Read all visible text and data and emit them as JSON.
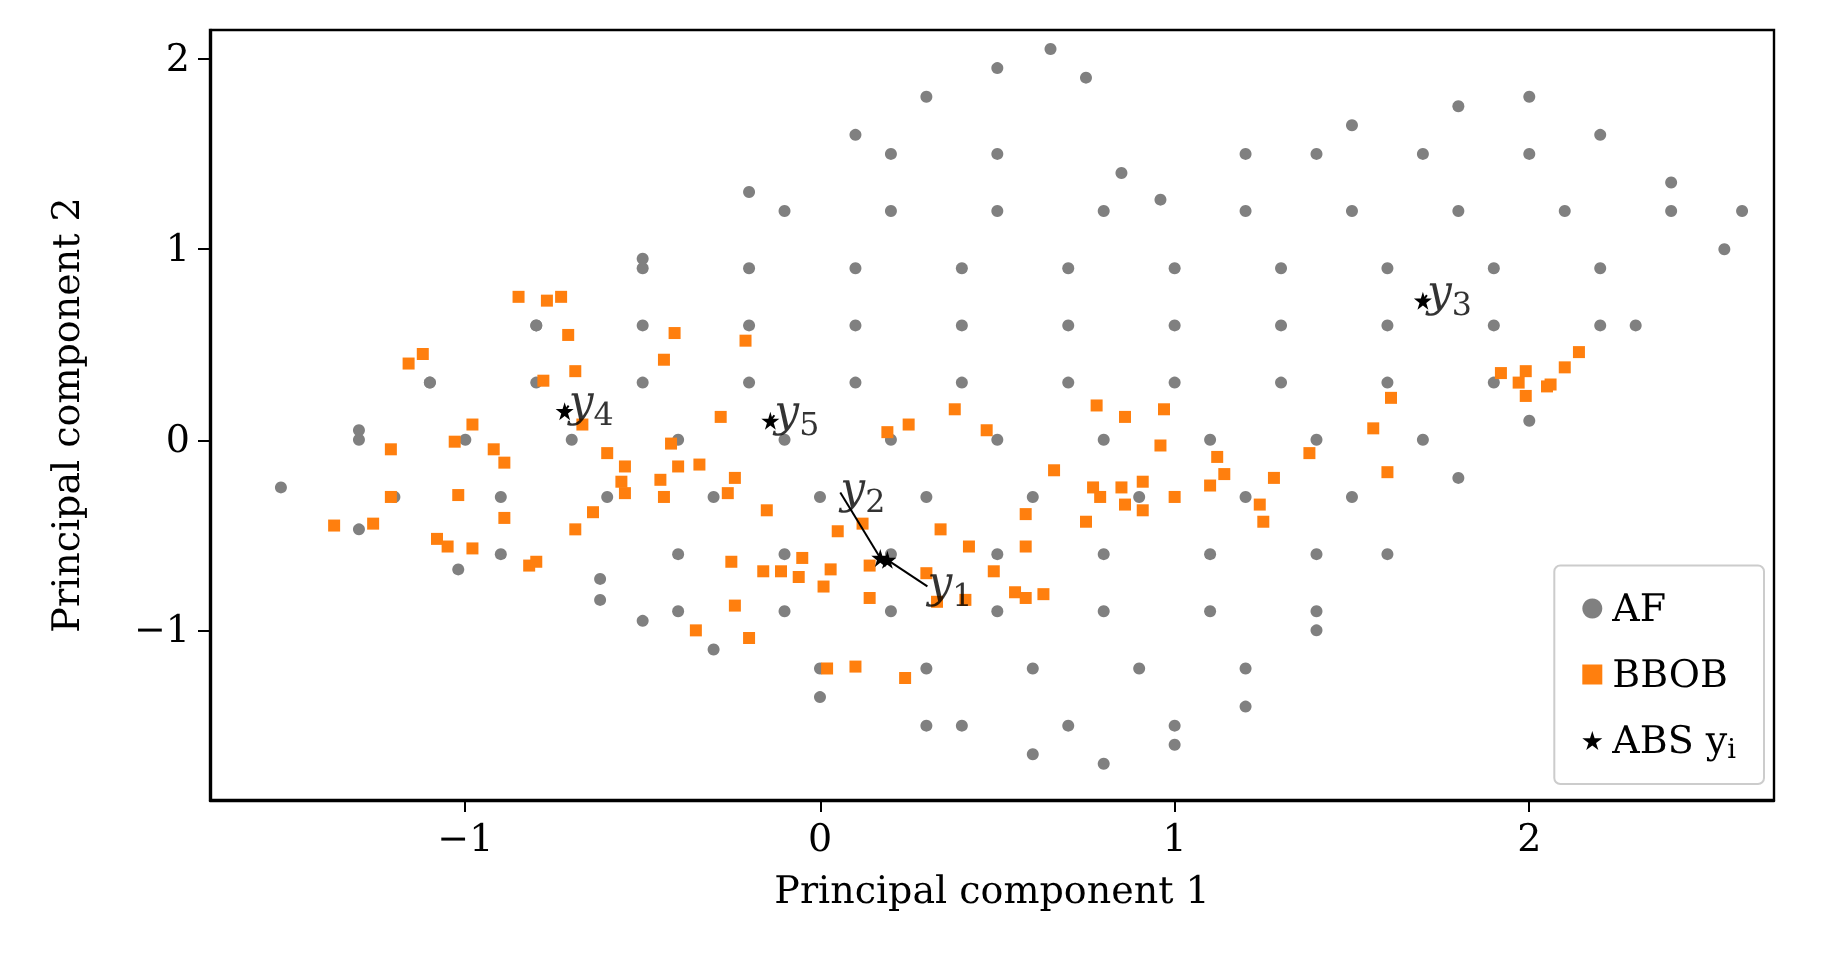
{
  "chart_data": {
    "type": "scatter",
    "xlabel": "Principal component 1",
    "ylabel": "Principal component 2",
    "xlim": [
      -1.72,
      2.69
    ],
    "ylim": [
      -1.89,
      2.15
    ],
    "xticks": [
      -1,
      0,
      1,
      2
    ],
    "yticks": [
      -1,
      0,
      1,
      2
    ],
    "grid": false,
    "legend": "bottom right",
    "series": [
      {
        "name": "AF",
        "color": "#808080",
        "marker": "circle",
        "x": [
          -1.52,
          -1.3,
          -1.1,
          -0.8,
          -0.5,
          -0.2,
          0.1,
          0.3,
          0.5,
          0.65,
          0.75,
          0.85,
          0.96,
          1.2,
          1.5,
          1.8,
          2.0,
          2.2,
          2.4,
          2.6,
          2.55,
          2.3,
          2.0,
          1.8,
          1.6,
          1.4,
          1.2,
          1.0,
          0.8,
          0.6,
          0.3,
          0.0,
          -0.3,
          -0.5,
          -0.62,
          -0.62,
          -1.02,
          -1.3,
          0.2,
          0.5,
          1.4,
          1.7,
          2.0,
          -0.1,
          0.2,
          0.5,
          0.8,
          1.2,
          1.5,
          1.8,
          2.1,
          2.4,
          -0.5,
          -0.2,
          0.1,
          0.4,
          0.7,
          1.0,
          1.3,
          1.6,
          1.9,
          2.2,
          -0.8,
          -0.5,
          -0.2,
          0.1,
          0.4,
          0.7,
          1.0,
          1.3,
          1.6,
          1.9,
          2.2,
          -1.1,
          -0.8,
          -0.5,
          -0.2,
          0.1,
          0.4,
          0.7,
          1.0,
          1.3,
          1.6,
          1.9,
          -1.3,
          -1.0,
          -0.7,
          -0.4,
          -0.1,
          0.2,
          0.5,
          0.8,
          1.1,
          1.4,
          1.7,
          -1.2,
          -0.9,
          -0.6,
          -0.3,
          0.0,
          0.3,
          0.6,
          0.9,
          1.2,
          1.5,
          -0.9,
          -0.4,
          -0.1,
          0.2,
          0.5,
          0.8,
          1.1,
          1.4,
          -0.4,
          -0.1,
          0.2,
          0.5,
          0.8,
          1.1,
          1.4,
          0.0,
          0.3,
          0.6,
          0.9,
          1.2,
          0.4,
          0.7,
          1.0
        ],
        "values": [
          -0.25,
          0.05,
          0.3,
          0.6,
          0.95,
          1.3,
          1.6,
          1.8,
          1.95,
          2.05,
          1.9,
          1.4,
          1.26,
          1.5,
          1.65,
          1.75,
          1.8,
          1.6,
          1.35,
          1.2,
          1.0,
          0.6,
          0.1,
          -0.2,
          -0.6,
          -1.0,
          -1.4,
          -1.6,
          -1.7,
          -1.65,
          -1.5,
          -1.35,
          -1.1,
          -0.95,
          -0.84,
          -0.73,
          -0.68,
          -0.47,
          1.5,
          1.5,
          1.5,
          1.5,
          1.5,
          1.2,
          1.2,
          1.2,
          1.2,
          1.2,
          1.2,
          1.2,
          1.2,
          1.2,
          0.9,
          0.9,
          0.9,
          0.9,
          0.9,
          0.9,
          0.9,
          0.9,
          0.9,
          0.9,
          0.6,
          0.6,
          0.6,
          0.6,
          0.6,
          0.6,
          0.6,
          0.6,
          0.6,
          0.6,
          0.6,
          0.3,
          0.3,
          0.3,
          0.3,
          0.3,
          0.3,
          0.3,
          0.3,
          0.3,
          0.3,
          0.3,
          0,
          0,
          0,
          0,
          0,
          0,
          0,
          0,
          0,
          0,
          0,
          -0.3,
          -0.3,
          -0.3,
          -0.3,
          -0.3,
          -0.3,
          -0.3,
          -0.3,
          -0.3,
          -0.3,
          -0.6,
          -0.6,
          -0.6,
          -0.6,
          -0.6,
          -0.6,
          -0.6,
          -0.6,
          -0.9,
          -0.9,
          -0.9,
          -0.9,
          -0.9,
          -0.9,
          -0.9,
          -1.2,
          -1.2,
          -1.2,
          -1.2,
          -1.2,
          -1.5,
          -1.5,
          -1.5
        ]
      },
      {
        "name": "BBOB",
        "color": "#ff7f0e",
        "marker": "square",
        "x": [
          -0.85,
          -0.77,
          -0.73,
          -0.71,
          -0.41,
          -0.21,
          -0.44,
          -0.69,
          -0.78,
          -1.12,
          -1.16,
          -0.67,
          -0.98,
          -1.03,
          -1.21,
          -0.92,
          -0.89,
          -0.6,
          -0.55,
          -0.28,
          -0.42,
          -0.4,
          -0.34,
          -0.24,
          -0.26,
          -0.45,
          -0.44,
          -0.56,
          -0.55,
          -1.21,
          -1.02,
          -0.89,
          -0.64,
          -0.69,
          -0.15,
          -1.37,
          -1.26,
          -1.08,
          -1.05,
          -0.98,
          -0.82,
          -0.8,
          -0.25,
          -0.16,
          -0.11,
          -0.06,
          -0.05,
          -0.24,
          -0.35,
          -0.2,
          0.38,
          0.19,
          0.25,
          0.47,
          0.78,
          0.86,
          0.97,
          0.96,
          0.66,
          1.12,
          1.14,
          1.1,
          1.28,
          1.38,
          1.24,
          1.25,
          0.77,
          0.79,
          0.85,
          0.91,
          0.86,
          0.91,
          1.0,
          0.75,
          0.58,
          0.05,
          0.12,
          0.34,
          0.42,
          0.58,
          0.03,
          0.01,
          0.14,
          0.14,
          0.3,
          0.33,
          0.41,
          0.49,
          0.55,
          0.58,
          0.63,
          0.02,
          0.1,
          0.24,
          1.92,
          1.99,
          1.97,
          1.99,
          2.05,
          2.06,
          2.1,
          2.14,
          1.61,
          1.56,
          1.6
        ],
        "values": [
          0.75,
          0.73,
          0.75,
          0.55,
          0.56,
          0.52,
          0.42,
          0.36,
          0.31,
          0.45,
          0.4,
          0.08,
          0.08,
          -0.01,
          -0.05,
          -0.05,
          -0.12,
          -0.07,
          -0.14,
          0.12,
          -0.02,
          -0.14,
          -0.13,
          -0.2,
          -0.28,
          -0.21,
          -0.3,
          -0.22,
          -0.28,
          -0.3,
          -0.29,
          -0.41,
          -0.38,
          -0.47,
          -0.37,
          -0.45,
          -0.44,
          -0.52,
          -0.56,
          -0.57,
          -0.66,
          -0.64,
          -0.64,
          -0.69,
          -0.69,
          -0.72,
          -0.62,
          -0.87,
          -1.0,
          -1.04,
          0.16,
          0.04,
          0.08,
          0.05,
          0.18,
          0.12,
          0.16,
          -0.03,
          -0.16,
          -0.09,
          -0.18,
          -0.24,
          -0.2,
          -0.07,
          -0.34,
          -0.43,
          -0.25,
          -0.3,
          -0.25,
          -0.22,
          -0.34,
          -0.37,
          -0.3,
          -0.43,
          -0.39,
          -0.48,
          -0.44,
          -0.47,
          -0.56,
          -0.56,
          -0.68,
          -0.77,
          -0.66,
          -0.83,
          -0.7,
          -0.85,
          -0.84,
          -0.69,
          -0.8,
          -0.83,
          -0.81,
          -1.2,
          -1.19,
          -1.25,
          0.35,
          0.36,
          0.3,
          0.23,
          0.28,
          0.29,
          0.38,
          0.46,
          0.22,
          0.06,
          -0.17
        ]
      },
      {
        "name": "ABS y$_{i}$",
        "color": "#000000",
        "marker": "star",
        "x": [
          0.19,
          0.17,
          1.7,
          -0.72,
          -0.14
        ],
        "values": [
          -0.63,
          -0.62,
          0.73,
          0.15,
          0.1
        ]
      }
    ],
    "annotations": [
      {
        "text": "y$_{1}$",
        "x": 0.19,
        "y": -0.63
      },
      {
        "text": "y$_{2}$",
        "x": 0.17,
        "y": -0.62
      },
      {
        "text": "y$_{3}$",
        "x": 1.7,
        "y": 0.73
      },
      {
        "text": "y$_{4}$",
        "x": -0.72,
        "y": 0.15
      },
      {
        "text": "y$_{5}$",
        "x": -0.14,
        "y": 0.1
      }
    ]
  }
}
